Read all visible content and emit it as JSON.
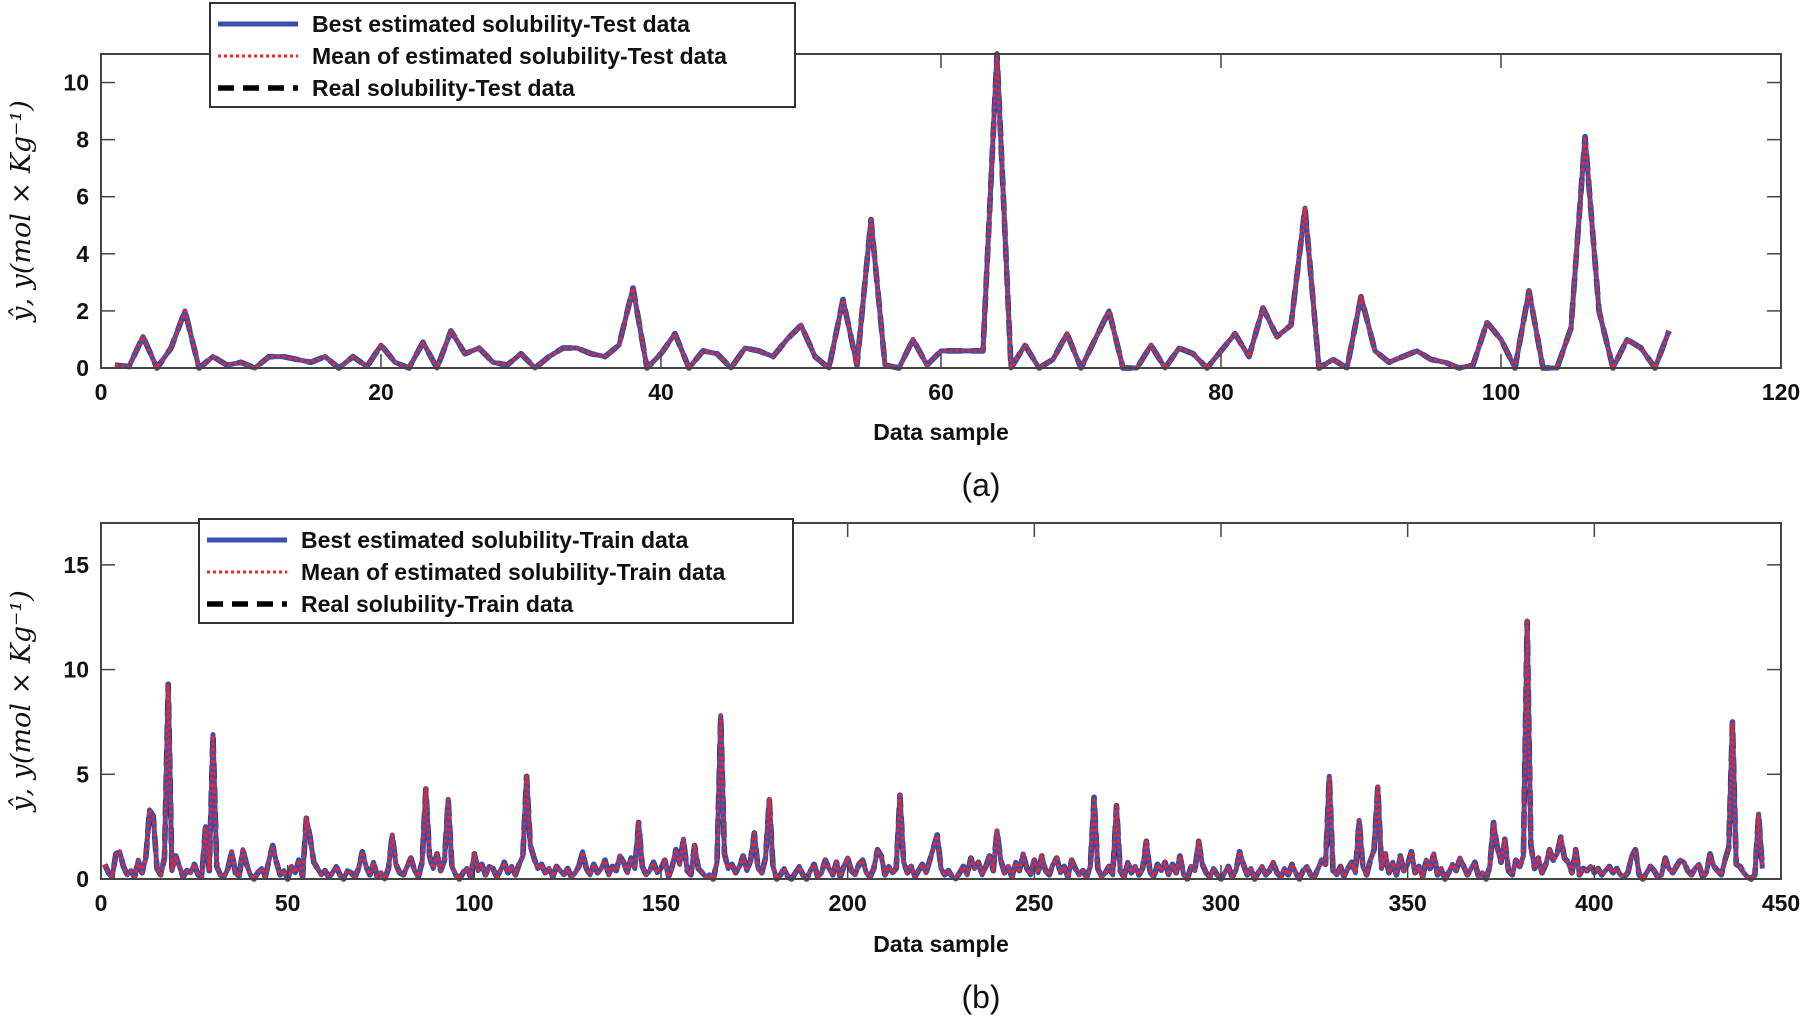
{
  "chart_data": [
    {
      "type": "line",
      "caption": "(a)",
      "xlabel": "Data sample",
      "ylabel": "ŷ, y(mol × Kg⁻¹)",
      "xlim": [
        0,
        120
      ],
      "ylim": [
        0,
        11
      ],
      "xticks": [
        0,
        20,
        40,
        60,
        80,
        100,
        120
      ],
      "yticks": [
        0,
        2,
        4,
        6,
        8,
        10
      ],
      "grid": false,
      "legend_position": "top-left",
      "series": [
        {
          "name": "Best estimated solubility-Test data",
          "color": "#3a4fb0",
          "style": "solid"
        },
        {
          "name": "Mean of estimated solubility-Test data",
          "color": "#ff2020",
          "style": "dotted"
        },
        {
          "name": "Real solubility-Test data",
          "color": "#000000",
          "style": "dashed"
        }
      ],
      "x_start": 1,
      "values": [
        0.1,
        0.05,
        1.1,
        0.0,
        0.7,
        2.0,
        0.0,
        0.4,
        0.1,
        0.2,
        0.0,
        0.4,
        0.4,
        0.3,
        0.2,
        0.4,
        0.0,
        0.4,
        0.05,
        0.8,
        0.2,
        0.0,
        0.9,
        0.0,
        1.3,
        0.5,
        0.7,
        0.2,
        0.1,
        0.5,
        0.0,
        0.4,
        0.7,
        0.7,
        0.5,
        0.4,
        0.8,
        2.8,
        0.0,
        0.5,
        1.2,
        0.0,
        0.6,
        0.5,
        0.0,
        0.7,
        0.6,
        0.4,
        1.0,
        1.5,
        0.4,
        0.0,
        2.4,
        0.1,
        5.2,
        0.1,
        0.0,
        1.0,
        0.1,
        0.6,
        0.6,
        0.6,
        0.6,
        11.0,
        0.0,
        0.8,
        0.0,
        0.3,
        1.2,
        0.0,
        1.0,
        2.0,
        0.0,
        0.0,
        0.8,
        0.0,
        0.7,
        0.5,
        0.0,
        0.6,
        1.2,
        0.4,
        2.1,
        1.1,
        1.5,
        5.6,
        0.0,
        0.3,
        0.0,
        2.5,
        0.6,
        0.2,
        0.4,
        0.6,
        0.3,
        0.2,
        0.0,
        0.1,
        1.6,
        1.0,
        0.0,
        2.7,
        0.0,
        0.0,
        1.4,
        8.1,
        2.0,
        0.0,
        1.0,
        0.7,
        0.0,
        1.3
      ]
    },
    {
      "type": "line",
      "caption": "(b)",
      "xlabel": "Data sample",
      "ylabel": "ŷ, y(mol × Kg⁻¹)",
      "xlim": [
        0,
        450
      ],
      "ylim": [
        0,
        17
      ],
      "xticks": [
        0,
        50,
        100,
        150,
        200,
        250,
        300,
        350,
        400,
        450
      ],
      "yticks": [
        0,
        5,
        10,
        15
      ],
      "grid": false,
      "legend_position": "top-left",
      "series": [
        {
          "name": "Best estimated solubility-Train data",
          "color": "#3a4fb0",
          "style": "solid"
        },
        {
          "name": "Mean of estimated solubility-Train data",
          "color": "#ff2020",
          "style": "dotted"
        },
        {
          "name": "Real solubility-Train data",
          "color": "#000000",
          "style": "dashed"
        }
      ],
      "x_start": 1,
      "values": [
        0.7,
        0.3,
        0.1,
        1.2,
        1.3,
        0.6,
        0.2,
        0.4,
        0.1,
        0.9,
        0.3,
        1.0,
        3.3,
        3.0,
        0.5,
        0.2,
        1.0,
        9.3,
        0.4,
        1.1,
        0.6,
        0.1,
        0.4,
        0.3,
        0.7,
        0.2,
        0.1,
        2.5,
        0.4,
        6.9,
        0.6,
        0.2,
        0.1,
        0.5,
        1.3,
        0.3,
        0.1,
        1.4,
        0.7,
        0.2,
        0.0,
        0.3,
        0.5,
        0.1,
        0.9,
        1.6,
        0.8,
        0.2,
        0.4,
        0.0,
        0.6,
        0.3,
        0.9,
        0.1,
        2.9,
        2.0,
        0.8,
        0.5,
        0.2,
        0.4,
        0.1,
        0.3,
        0.6,
        0.2,
        0.0,
        0.4,
        0.3,
        0.1,
        0.5,
        1.3,
        0.6,
        0.2,
        0.8,
        0.1,
        0.3,
        0.0,
        0.5,
        2.1,
        0.7,
        0.3,
        0.2,
        0.6,
        1.0,
        0.4,
        0.1,
        0.8,
        4.3,
        1.1,
        0.5,
        1.2,
        0.4,
        0.9,
        3.8,
        0.6,
        0.2,
        0.0,
        0.3,
        0.5,
        0.1,
        1.2,
        0.4,
        0.7,
        0.2,
        0.6,
        0.5,
        0.1,
        0.4,
        0.8,
        0.3,
        0.6,
        0.2,
        0.7,
        1.1,
        4.9,
        1.6,
        1.0,
        0.5,
        0.7,
        0.3,
        0.5,
        0.1,
        0.6,
        0.4,
        0.2,
        0.5,
        0.1,
        0.3,
        0.6,
        1.3,
        0.5,
        0.2,
        0.7,
        0.3,
        0.5,
        0.9,
        0.2,
        0.6,
        0.4,
        1.1,
        0.8,
        0.3,
        1.0,
        0.5,
        2.7,
        0.6,
        0.2,
        0.4,
        0.8,
        0.3,
        0.5,
        0.9,
        0.1,
        0.6,
        1.4,
        0.7,
        1.9,
        0.4,
        0.2,
        1.6,
        0.5,
        0.3,
        0.1,
        0.2,
        0.0,
        0.8,
        7.8,
        1.2,
        0.5,
        0.7,
        0.3,
        0.6,
        1.1,
        0.4,
        0.9,
        2.2,
        0.5,
        0.3,
        1.0,
        3.8,
        0.6,
        0.0,
        0.2,
        0.5,
        0.1,
        0.0,
        0.3,
        0.6,
        0.2,
        0.0,
        0.4,
        0.7,
        0.1,
        0.3,
        0.9,
        0.5,
        0.2,
        0.8,
        0.1,
        0.6,
        1.0,
        0.4,
        0.2,
        0.7,
        0.9,
        0.3,
        0.1,
        0.5,
        1.4,
        1.1,
        0.2,
        0.6,
        0.3,
        0.5,
        4.0,
        0.8,
        0.3,
        0.6,
        0.1,
        0.4,
        0.7,
        0.3,
        0.9,
        1.5,
        2.1,
        0.5,
        0.2,
        0.4,
        0.1,
        0.0,
        0.3,
        0.6,
        0.2,
        1.0,
        0.5,
        0.8,
        0.2,
        0.6,
        1.1,
        0.4,
        2.3,
        0.9,
        0.3,
        0.6,
        0.1,
        0.8,
        0.4,
        1.2,
        0.5,
        0.2,
        0.9,
        0.3,
        1.1,
        0.4,
        0.2,
        0.7,
        1.0,
        0.3,
        0.6,
        0.1,
        0.9,
        0.5,
        0.2,
        0.4,
        0.1,
        0.6,
        3.9,
        0.5,
        0.1,
        0.3,
        0.6,
        0.2,
        3.5,
        0.4,
        0.1,
        0.8,
        0.3,
        0.6,
        0.2,
        0.5,
        1.8,
        0.3,
        0.1,
        0.7,
        0.4,
        0.8,
        0.2,
        0.7,
        0.3,
        1.1,
        0.2,
        0.0,
        0.6,
        0.4,
        1.8,
        0.7,
        0.3,
        0.1,
        0.5,
        0.2,
        0.0,
        0.3,
        0.6,
        0.1,
        0.4,
        1.3,
        0.7,
        0.2,
        0.5,
        0.0,
        0.3,
        0.6,
        0.2,
        0.4,
        0.8,
        0.3,
        0.1,
        0.5,
        0.2,
        0.7,
        0.3,
        0.0,
        0.4,
        0.6,
        0.2,
        0.1,
        0.5,
        0.9,
        0.7,
        4.9,
        0.4,
        0.2,
        0.6,
        0.1,
        0.5,
        0.8,
        0.3,
        2.8,
        0.6,
        0.2,
        0.9,
        1.4,
        4.4,
        0.5,
        1.2,
        0.3,
        0.8,
        0.2,
        1.1,
        0.4,
        0.7,
        1.3,
        0.3,
        0.6,
        0.1,
        0.9,
        0.5,
        1.2,
        0.2,
        0.5,
        0.0,
        0.3,
        0.7,
        0.4,
        1.0,
        0.6,
        0.2,
        0.5,
        0.8,
        0.1,
        0.3,
        0.0,
        0.6,
        2.7,
        1.5,
        0.8,
        1.9,
        0.4,
        0.2,
        0.9,
        0.6,
        1.1,
        12.3,
        1.6,
        0.5,
        1.0,
        0.3,
        0.7,
        1.4,
        0.9,
        1.2,
        2.0,
        1.0,
        0.8,
        0.3,
        1.4,
        0.2,
        0.5,
        0.4,
        0.6,
        0.3,
        0.5,
        0.2,
        0.4,
        0.6,
        0.3,
        0.5,
        0.2,
        0.1,
        0.3,
        1.1,
        1.4,
        0.2,
        0.0,
        0.3,
        0.6,
        0.4,
        0.1,
        0.2,
        1.0,
        0.5,
        0.3,
        0.6,
        0.9,
        0.8,
        0.4,
        0.2,
        0.5,
        0.7,
        0.1,
        0.3,
        1.2,
        0.6,
        0.4,
        0.2,
        0.9,
        1.5,
        7.5,
        0.7,
        0.6,
        0.3,
        0.1,
        0.0,
        0.2,
        3.1,
        0.5
      ]
    }
  ]
}
